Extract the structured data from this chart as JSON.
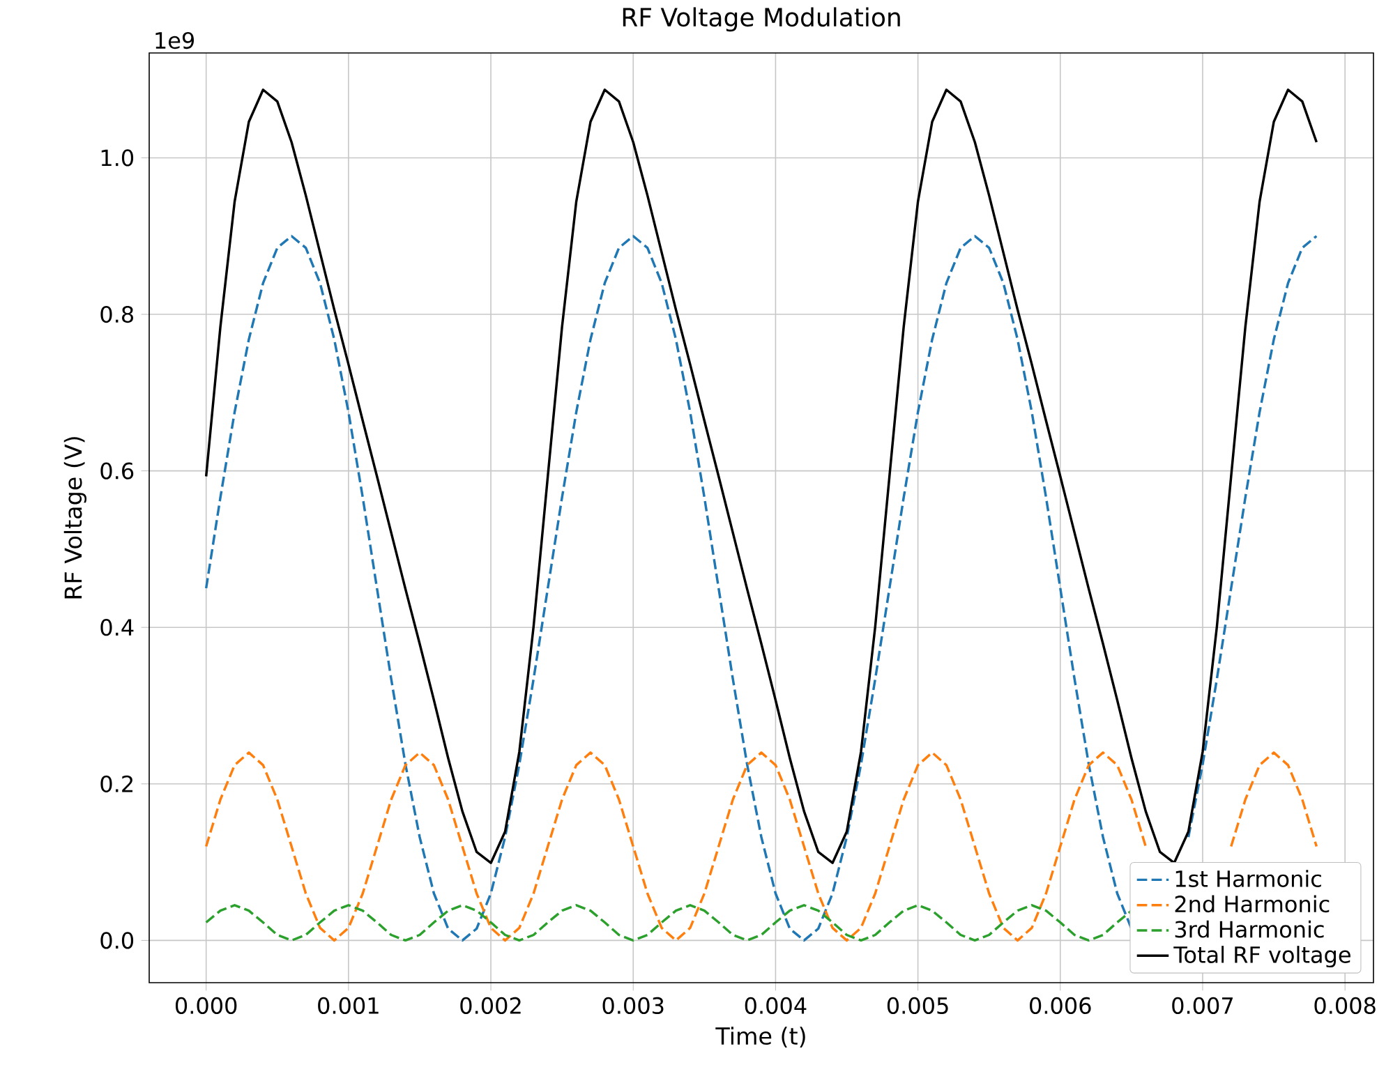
{
  "chart_data": {
    "type": "line",
    "title": "RF Voltage Modulation",
    "xlabel": "Time (t)",
    "ylabel": "RF Voltage (V)",
    "annotations": [
      "1e9"
    ],
    "x": [
      0,
      0.0001,
      0.0002,
      0.0003,
      0.0004,
      0.0005,
      0.0006,
      0.0007,
      0.0008,
      0.0009,
      0.001,
      0.0011,
      0.0012,
      0.0013,
      0.0014,
      0.0015,
      0.0016,
      0.0017,
      0.0018,
      0.0019,
      0.002,
      0.0021,
      0.0022,
      0.0023,
      0.0024,
      0.0025,
      0.0026,
      0.0027,
      0.0028,
      0.0029,
      0.003,
      0.0031,
      0.0032,
      0.0033,
      0.0034,
      0.0035,
      0.0036,
      0.0037,
      0.0038,
      0.0039,
      0.004,
      0.0041,
      0.0042,
      0.0043,
      0.0044,
      0.0045,
      0.0046,
      0.0047,
      0.0048,
      0.0049,
      0.005,
      0.0051,
      0.0052,
      0.0053,
      0.0054,
      0.0055,
      0.0056,
      0.0057,
      0.0058,
      0.0059,
      0.006,
      0.0061,
      0.0062,
      0.0063,
      0.0064,
      0.0065,
      0.0066,
      0.0067,
      0.0068,
      0.0069,
      0.007,
      0.0071,
      0.0072,
      0.0073,
      0.0074,
      0.0075,
      0.0076,
      0.0077,
      0.0078
    ],
    "series": [
      {
        "name": "1st Harmonic",
        "color": "#1f77b4",
        "line_style": "dashed",
        "values": [
          0.45,
          0.566,
          0.675,
          0.768,
          0.84,
          0.885,
          0.9,
          0.885,
          0.84,
          0.768,
          0.675,
          0.566,
          0.45,
          0.334,
          0.225,
          0.132,
          0.06,
          0.015,
          0,
          0.015,
          0.06,
          0.132,
          0.225,
          0.334,
          0.45,
          0.566,
          0.675,
          0.768,
          0.84,
          0.885,
          0.9,
          0.885,
          0.84,
          0.768,
          0.675,
          0.566,
          0.45,
          0.334,
          0.225,
          0.132,
          0.06,
          0.015,
          0,
          0.015,
          0.06,
          0.132,
          0.225,
          0.334,
          0.45,
          0.566,
          0.675,
          0.768,
          0.84,
          0.885,
          0.9,
          0.885,
          0.84,
          0.768,
          0.675,
          0.566,
          0.45,
          0.334,
          0.225,
          0.132,
          0.06,
          0.015,
          null,
          null,
          null,
          0.132,
          0.225,
          0.334,
          0.45,
          0.566,
          0.675,
          0.768,
          0.84,
          0.885,
          0.9
        ]
      },
      {
        "name": "2nd Harmonic",
        "color": "#ff7f0e",
        "line_style": "dashed",
        "values": [
          0.12,
          0.18,
          0.224,
          0.24,
          0.224,
          0.18,
          0.12,
          0.06,
          0.016,
          0,
          0.016,
          0.06,
          0.12,
          0.18,
          0.224,
          0.24,
          0.224,
          0.18,
          0.12,
          0.06,
          0.016,
          0,
          0.016,
          0.06,
          0.12,
          0.18,
          0.224,
          0.24,
          0.224,
          0.18,
          0.12,
          0.06,
          0.016,
          0,
          0.016,
          0.06,
          0.12,
          0.18,
          0.224,
          0.24,
          0.224,
          0.18,
          0.12,
          0.06,
          0.016,
          0,
          0.016,
          0.06,
          0.12,
          0.18,
          0.224,
          0.24,
          0.224,
          0.18,
          0.12,
          0.06,
          0.016,
          0,
          0.016,
          0.06,
          0.12,
          0.18,
          0.224,
          0.24,
          0.224,
          0.18,
          0.12,
          null,
          null,
          null,
          null,
          null,
          0.12,
          0.18,
          0.224,
          0.24,
          0.224,
          0.18,
          0.12
        ]
      },
      {
        "name": "3rd Harmonic",
        "color": "#2ca02c",
        "line_style": "dashed",
        "values": [
          0.023,
          0.038,
          0.045,
          0.038,
          0.023,
          0.007,
          0,
          0.007,
          0.023,
          0.038,
          0.045,
          0.038,
          0.023,
          0.007,
          0,
          0.007,
          0.023,
          0.038,
          0.045,
          0.038,
          0.023,
          0.007,
          0,
          0.007,
          0.023,
          0.038,
          0.045,
          0.038,
          0.023,
          0.007,
          0,
          0.007,
          0.023,
          0.038,
          0.045,
          0.038,
          0.023,
          0.007,
          0,
          0.007,
          0.023,
          0.038,
          0.045,
          0.038,
          0.023,
          0.007,
          0,
          0.007,
          0.023,
          0.038,
          0.045,
          0.038,
          0.023,
          0.007,
          0,
          0.007,
          0.023,
          0.038,
          0.045,
          0.038,
          0.023,
          0.007,
          0,
          0.007,
          0.023,
          0.038,
          null,
          null,
          null,
          null,
          null,
          null,
          null,
          null,
          null,
          null,
          null,
          null,
          null
        ]
      },
      {
        "name": "Total RF voltage",
        "color": "#000000",
        "line_style": "solid",
        "values": [
          0.593,
          0.784,
          0.944,
          1.046,
          1.087,
          1.072,
          1.02,
          0.952,
          0.879,
          0.806,
          0.736,
          0.664,
          0.593,
          0.521,
          0.449,
          0.379,
          0.307,
          0.233,
          0.165,
          0.113,
          0.099,
          0.139,
          0.241,
          0.401,
          0.593,
          0.784,
          0.944,
          1.046,
          1.087,
          1.072,
          1.02,
          0.952,
          0.879,
          0.806,
          0.736,
          0.664,
          0.593,
          0.521,
          0.449,
          0.379,
          0.307,
          0.233,
          0.165,
          0.113,
          0.099,
          0.139,
          0.241,
          0.401,
          0.593,
          0.784,
          0.944,
          1.046,
          1.087,
          1.072,
          1.02,
          0.952,
          0.879,
          0.806,
          0.736,
          0.664,
          0.593,
          0.521,
          0.449,
          0.379,
          0.307,
          0.233,
          0.165,
          0.113,
          0.099,
          0.139,
          0.241,
          0.401,
          0.593,
          0.784,
          0.944,
          1.046,
          1.087,
          1.072,
          1.02
        ]
      }
    ],
    "xlim": [
      -0.0004,
      0.0082
    ],
    "ylim": [
      -0.054,
      1.134
    ],
    "xticks": [
      {
        "value": 0,
        "label": "0.000"
      },
      {
        "value": 0.001,
        "label": "0.001"
      },
      {
        "value": 0.002,
        "label": "0.002"
      },
      {
        "value": 0.003,
        "label": "0.003"
      },
      {
        "value": 0.004,
        "label": "0.004"
      },
      {
        "value": 0.005,
        "label": "0.005"
      },
      {
        "value": 0.006,
        "label": "0.006"
      },
      {
        "value": 0.007,
        "label": "0.007"
      },
      {
        "value": 0.008,
        "label": "0.008"
      }
    ],
    "yticks": [
      {
        "value": 0,
        "label": "0.0"
      },
      {
        "value": 0.2,
        "label": "0.2"
      },
      {
        "value": 0.4,
        "label": "0.4"
      },
      {
        "value": 0.6,
        "label": "0.6"
      },
      {
        "value": 0.8,
        "label": "0.8"
      },
      {
        "value": 1.0,
        "label": "1.0"
      }
    ],
    "grid": true,
    "legend": "bottom right"
  }
}
